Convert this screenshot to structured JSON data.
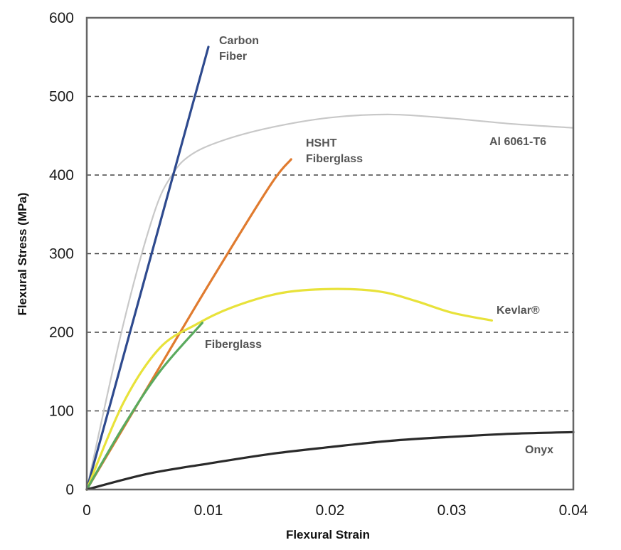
{
  "chart_data": {
    "type": "line",
    "xlabel": "Flexural Strain",
    "ylabel": "Flexural Stress (MPa)",
    "xlim": [
      0,
      0.04
    ],
    "ylim": [
      0,
      600
    ],
    "x_ticks": [
      "0",
      "0.01",
      "0.02",
      "0.03",
      "0.04"
    ],
    "y_ticks": [
      "0",
      "100",
      "200",
      "300",
      "400",
      "500",
      "600"
    ],
    "grid": "horizontal dashed",
    "legend": "none (labels placed next to curves)",
    "series": [
      {
        "name": "Al 6061-T6",
        "label_lines": [
          "Al 6061-T6"
        ],
        "color": "#c8c8c8",
        "points": [
          [
            0,
            0
          ],
          [
            0.003,
            210
          ],
          [
            0.0055,
            350
          ],
          [
            0.007,
            400
          ],
          [
            0.0085,
            425
          ],
          [
            0.011,
            443
          ],
          [
            0.015,
            460
          ],
          [
            0.02,
            473
          ],
          [
            0.025,
            477
          ],
          [
            0.03,
            472
          ],
          [
            0.035,
            465
          ],
          [
            0.04,
            460
          ]
        ]
      },
      {
        "name": "Carbon Fiber",
        "label_lines": [
          "Carbon",
          "Fiber"
        ],
        "color": "#2e4a8e",
        "points": [
          [
            0,
            0
          ],
          [
            0.01,
            563
          ]
        ]
      },
      {
        "name": "HSHT Fiberglass",
        "label_lines": [
          "HSHT",
          "Fiberglass"
        ],
        "color": "#e07b2f",
        "points": [
          [
            0,
            0
          ],
          [
            0.005,
            130
          ],
          [
            0.01,
            260
          ],
          [
            0.015,
            385
          ],
          [
            0.0168,
            420
          ]
        ]
      },
      {
        "name": "Kevlar®",
        "label_lines": [
          "Kevlar®"
        ],
        "color": "#e8e23a",
        "points": [
          [
            0,
            0
          ],
          [
            0.003,
            110
          ],
          [
            0.006,
            180
          ],
          [
            0.009,
            210
          ],
          [
            0.012,
            232
          ],
          [
            0.016,
            250
          ],
          [
            0.02,
            255
          ],
          [
            0.024,
            252
          ],
          [
            0.027,
            240
          ],
          [
            0.03,
            225
          ],
          [
            0.0333,
            215
          ]
        ]
      },
      {
        "name": "Fiberglass",
        "label_lines": [
          "Fiberglass"
        ],
        "color": "#5aaa5e",
        "points": [
          [
            0,
            0
          ],
          [
            0.003,
            80
          ],
          [
            0.006,
            150
          ],
          [
            0.0095,
            212
          ]
        ]
      },
      {
        "name": "Onyx",
        "label_lines": [
          "Onyx"
        ],
        "color": "#2a2a2a",
        "points": [
          [
            0,
            0
          ],
          [
            0.005,
            20
          ],
          [
            0.01,
            33
          ],
          [
            0.015,
            45
          ],
          [
            0.02,
            54
          ],
          [
            0.025,
            62
          ],
          [
            0.03,
            67
          ],
          [
            0.035,
            71
          ],
          [
            0.04,
            73
          ]
        ]
      }
    ]
  }
}
